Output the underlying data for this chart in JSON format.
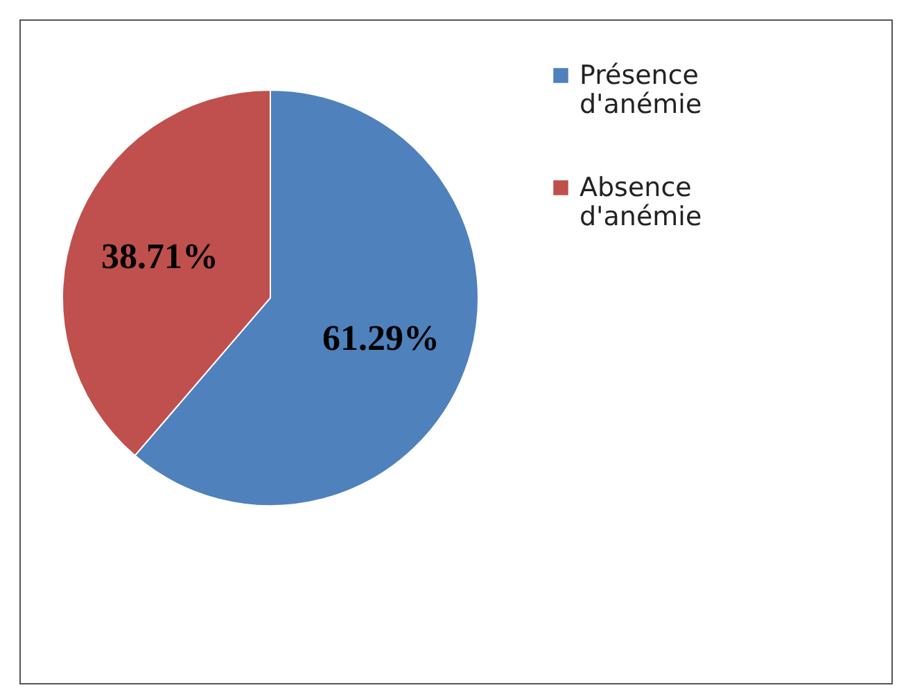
{
  "chart_data": {
    "type": "pie",
    "categories": [
      "Présence d'anémie",
      "Absence d'anémie"
    ],
    "values": [
      61.29,
      38.71
    ],
    "colors": [
      "#4f81bd",
      "#c0504d"
    ],
    "value_labels": [
      "61.29%",
      "38.71%"
    ],
    "legend": "right"
  }
}
